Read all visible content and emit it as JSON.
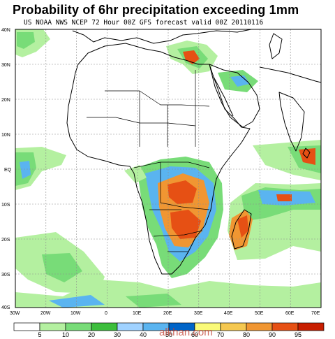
{
  "title": "Probability of 6hr precipitation exceeding 1mm",
  "subtitle": "US NOAA NWS NCEP 72 Hour 00Z GFS forecast valid 00Z 20110116",
  "lat_labels": [
    "40N",
    "30N",
    "20N",
    "10N",
    "EQ",
    "10S",
    "20S",
    "30S",
    "40S"
  ],
  "lon_labels": [
    "30W",
    "20W",
    "10W",
    "0",
    "10E",
    "20E",
    "30E",
    "40E",
    "50E",
    "60E",
    "70E"
  ],
  "colorbar": {
    "labels": [
      "5",
      "10",
      "20",
      "30",
      "40",
      "50",
      "60",
      "70",
      "80",
      "90",
      "95"
    ],
    "colors": [
      "#ffffff",
      "#b4f0a0",
      "#78dc78",
      "#3cbe3c",
      "#a0d2ff",
      "#5ab4f0",
      "#0064c8",
      "#fafa78",
      "#f5c850",
      "#f09632",
      "#e65014",
      "#c81e00"
    ]
  },
  "watermark": "alkhan.com",
  "map_colors": {
    "land_outline": "#000000",
    "grid": "#8c8c8c",
    "light_green": "#b4f0a0",
    "green": "#78dc78",
    "dark_green": "#3cbe3c",
    "light_blue": "#a0d2ff",
    "blue": "#5ab4f0",
    "orange": "#f09632",
    "red": "#e65014"
  }
}
